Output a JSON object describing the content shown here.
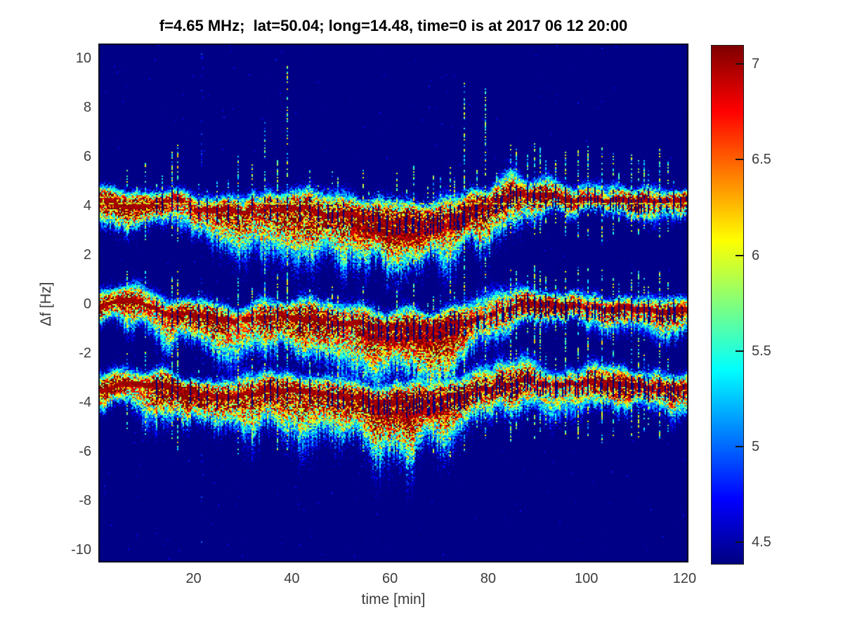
{
  "chart_data": {
    "type": "heatmap",
    "subtype": "doppler-spectrogram",
    "title": "f=4.65 MHz;  lat=50.04; long=14.48, time=0 is at 2017 06 12 20:00",
    "xlabel": "time [min]",
    "ylabel": "Δf [Hz]",
    "xlim": [
      0.6,
      120.8
    ],
    "ylim": [
      -10.5,
      10.6
    ],
    "xticks": [
      20,
      40,
      60,
      80,
      100,
      120
    ],
    "yticks": [
      10,
      8,
      6,
      4,
      2,
      0,
      -2,
      -4,
      -6,
      -8,
      -10
    ],
    "grid": false,
    "colormap": "jet",
    "colorbar": {
      "position": "right",
      "ticks": [
        4.5,
        5,
        5.5,
        6,
        6.5,
        7
      ],
      "clim": [
        4.39,
        7.1
      ]
    },
    "colors": {
      "background_deep_blue": "#00008f",
      "ridge_dark_red": "#8b0000",
      "tick_label": "#3d3d3d",
      "title": "#000000"
    },
    "background_value": 4.41,
    "dashed_line": {
      "y": 4.13,
      "t_start": 0.9,
      "t_end": 120.8,
      "color": "#cde41e"
    },
    "bands": [
      {
        "name": "upper-trace (~+4 Hz)",
        "ridge": [
          [
            1,
            4.2
          ],
          [
            4,
            4.15
          ],
          [
            7,
            4.0
          ],
          [
            10,
            4.05
          ],
          [
            13,
            4.1
          ],
          [
            16,
            4.25
          ],
          [
            18,
            4.1
          ],
          [
            20,
            3.85
          ],
          [
            23,
            3.75
          ],
          [
            26,
            3.9
          ],
          [
            29,
            3.8
          ],
          [
            32,
            3.85
          ],
          [
            35,
            3.9
          ],
          [
            38,
            3.8
          ],
          [
            41,
            3.95
          ],
          [
            44,
            3.9
          ],
          [
            47,
            3.65
          ],
          [
            50,
            3.6
          ],
          [
            53,
            3.65
          ],
          [
            56,
            3.5
          ],
          [
            59,
            3.4
          ],
          [
            62,
            3.3
          ],
          [
            65,
            3.4
          ],
          [
            68,
            3.25
          ],
          [
            71,
            3.45
          ],
          [
            74,
            3.65
          ],
          [
            77,
            3.85
          ],
          [
            80,
            4.05
          ],
          [
            83,
            4.3
          ],
          [
            86,
            4.5
          ],
          [
            89,
            4.5
          ],
          [
            92,
            4.4
          ],
          [
            95,
            4.3
          ],
          [
            99,
            4.25
          ],
          [
            104,
            4.2
          ],
          [
            110,
            4.18
          ],
          [
            115,
            4.2
          ],
          [
            120.8,
            4.18
          ]
        ],
        "secondary": [
          [
            52,
            3.15
          ],
          [
            56,
            3.0
          ],
          [
            60,
            2.85
          ],
          [
            64,
            2.8
          ],
          [
            68,
            3.0
          ],
          [
            72,
            3.25
          ],
          [
            76,
            3.55
          ]
        ],
        "width_dn": [
          [
            1,
            0.45
          ],
          [
            10,
            0.5
          ],
          [
            22,
            0.7
          ],
          [
            30,
            0.95
          ],
          [
            40,
            0.9
          ],
          [
            50,
            0.9
          ],
          [
            60,
            1.05
          ],
          [
            70,
            1.1
          ],
          [
            78,
            0.8
          ],
          [
            86,
            0.6
          ],
          [
            92,
            0.4
          ],
          [
            100,
            0.35
          ],
          [
            120.8,
            0.4
          ]
        ],
        "width_up": [
          [
            1,
            0.3
          ],
          [
            20,
            0.35
          ],
          [
            40,
            0.4
          ],
          [
            60,
            0.45
          ],
          [
            75,
            0.5
          ],
          [
            85,
            0.5
          ],
          [
            95,
            0.3
          ],
          [
            105,
            0.35
          ],
          [
            120.8,
            0.3
          ]
        ],
        "amp": [
          [
            1,
            2.6
          ],
          [
            12,
            2.75
          ],
          [
            25,
            2.8
          ],
          [
            45,
            2.75
          ],
          [
            60,
            2.7
          ],
          [
            75,
            2.75
          ],
          [
            88,
            2.7
          ],
          [
            100,
            2.55
          ],
          [
            120.8,
            2.5
          ]
        ]
      },
      {
        "name": "middle-trace (~-0.5 Hz)",
        "ridge": [
          [
            1,
            -0.15
          ],
          [
            3,
            0.0
          ],
          [
            5,
            0.1
          ],
          [
            8,
            0.15
          ],
          [
            10,
            0.0
          ],
          [
            12,
            -0.2
          ],
          [
            15,
            -0.35
          ],
          [
            18,
            -0.45
          ],
          [
            21,
            -0.5
          ],
          [
            24,
            -0.6
          ],
          [
            27,
            -0.7
          ],
          [
            30,
            -0.75
          ],
          [
            33,
            -0.65
          ],
          [
            36,
            -0.55
          ],
          [
            39,
            -0.5
          ],
          [
            42,
            -0.55
          ],
          [
            45,
            -0.6
          ],
          [
            48,
            -0.7
          ],
          [
            51,
            -0.75
          ],
          [
            54,
            -0.8
          ],
          [
            57,
            -0.9
          ],
          [
            60,
            -0.95
          ],
          [
            63,
            -1.0
          ],
          [
            66,
            -1.05
          ],
          [
            69,
            -1.0
          ],
          [
            72,
            -0.9
          ],
          [
            75,
            -0.75
          ],
          [
            78,
            -0.55
          ],
          [
            81,
            -0.35
          ],
          [
            84,
            -0.15
          ],
          [
            87,
            -0.05
          ],
          [
            90,
            -0.05
          ],
          [
            93,
            -0.1
          ],
          [
            96,
            -0.1
          ],
          [
            100,
            -0.15
          ],
          [
            105,
            -0.2
          ],
          [
            110,
            -0.25
          ],
          [
            115,
            -0.25
          ],
          [
            120.8,
            -0.3
          ]
        ],
        "secondary": [
          [
            54,
            -1.25
          ],
          [
            58,
            -1.35
          ],
          [
            62,
            -1.45
          ],
          [
            66,
            -1.4
          ],
          [
            70,
            -1.25
          ],
          [
            74,
            -1.05
          ]
        ],
        "width_dn": [
          [
            1,
            0.45
          ],
          [
            12,
            0.6
          ],
          [
            25,
            0.9
          ],
          [
            40,
            0.95
          ],
          [
            55,
            1.0
          ],
          [
            68,
            1.1
          ],
          [
            78,
            0.8
          ],
          [
            88,
            0.5
          ],
          [
            95,
            0.4
          ],
          [
            105,
            0.45
          ],
          [
            120.8,
            0.5
          ]
        ],
        "width_up": [
          [
            1,
            0.35
          ],
          [
            30,
            0.4
          ],
          [
            60,
            0.45
          ],
          [
            80,
            0.5
          ],
          [
            90,
            0.35
          ],
          [
            120.8,
            0.3
          ]
        ],
        "amp": [
          [
            1,
            2.6
          ],
          [
            15,
            2.7
          ],
          [
            40,
            2.7
          ],
          [
            70,
            2.7
          ],
          [
            85,
            2.65
          ],
          [
            100,
            2.5
          ],
          [
            120.8,
            2.45
          ]
        ]
      },
      {
        "name": "lower-trace (~-3.5 Hz)",
        "ridge": [
          [
            1,
            -3.45
          ],
          [
            4,
            -3.35
          ],
          [
            7,
            -3.3
          ],
          [
            10,
            -3.25
          ],
          [
            13,
            -3.4
          ],
          [
            16,
            -3.45
          ],
          [
            19,
            -3.55
          ],
          [
            22,
            -3.65
          ],
          [
            25,
            -3.7
          ],
          [
            28,
            -3.75
          ],
          [
            31,
            -3.7
          ],
          [
            34,
            -3.6
          ],
          [
            37,
            -3.55
          ],
          [
            40,
            -3.5
          ],
          [
            43,
            -3.6
          ],
          [
            46,
            -3.65
          ],
          [
            49,
            -3.7
          ],
          [
            52,
            -3.8
          ],
          [
            55,
            -3.85
          ],
          [
            58,
            -3.95
          ],
          [
            61,
            -4.0
          ],
          [
            64,
            -4.05
          ],
          [
            67,
            -4.0
          ],
          [
            70,
            -3.9
          ],
          [
            73,
            -3.75
          ],
          [
            76,
            -3.6
          ],
          [
            79,
            -3.45
          ],
          [
            82,
            -3.3
          ],
          [
            85,
            -3.2
          ],
          [
            88,
            -3.15
          ],
          [
            91,
            -3.2
          ],
          [
            94,
            -3.2
          ],
          [
            97,
            -3.25
          ],
          [
            100,
            -3.2
          ],
          [
            104,
            -3.25
          ],
          [
            108,
            -3.3
          ],
          [
            112,
            -3.35
          ],
          [
            116,
            -3.35
          ],
          [
            120.8,
            -3.4
          ]
        ],
        "secondary": [
          [
            56,
            -4.3
          ],
          [
            60,
            -4.45
          ],
          [
            64,
            -4.5
          ],
          [
            68,
            -4.35
          ],
          [
            72,
            -4.15
          ]
        ],
        "width_dn": [
          [
            1,
            0.5
          ],
          [
            12,
            0.65
          ],
          [
            25,
            0.9
          ],
          [
            40,
            0.95
          ],
          [
            55,
            1.05
          ],
          [
            68,
            1.15
          ],
          [
            78,
            0.85
          ],
          [
            88,
            0.6
          ],
          [
            100,
            0.55
          ],
          [
            110,
            0.6
          ],
          [
            120.8,
            0.6
          ]
        ],
        "width_up": [
          [
            1,
            0.35
          ],
          [
            30,
            0.4
          ],
          [
            60,
            0.45
          ],
          [
            80,
            0.5
          ],
          [
            90,
            0.4
          ],
          [
            120.8,
            0.35
          ]
        ],
        "amp": [
          [
            1,
            2.6
          ],
          [
            15,
            2.7
          ],
          [
            40,
            2.7
          ],
          [
            70,
            2.7
          ],
          [
            85,
            2.65
          ],
          [
            100,
            2.55
          ],
          [
            120.8,
            2.5
          ]
        ]
      }
    ],
    "spikes": {
      "t_start": 6.5,
      "t_end": 118,
      "min_gap": 0.8,
      "gap_jitter": 2.0,
      "tall_times": [
        21.5,
        27,
        34,
        38.5,
        70.5,
        75,
        79,
        83
      ],
      "faint_full_columns": [
        21.5
      ]
    }
  }
}
